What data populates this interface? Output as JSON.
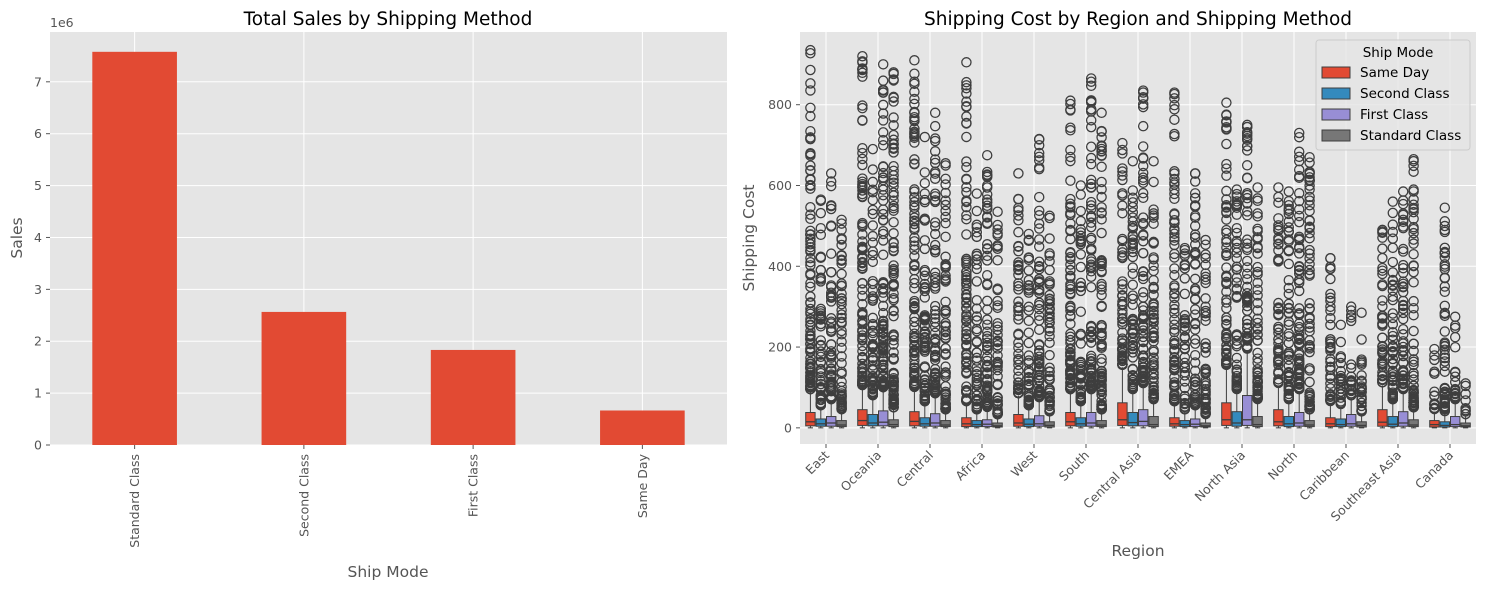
{
  "colors": {
    "panel_bg": "#E5E5E5",
    "grid": "#FFFFFF",
    "bar": "#E24A33",
    "same_day": "#E24A33",
    "second_class": "#348ABD",
    "first_class": "#988ED5",
    "standard_class": "#777777",
    "median": "#3E3E3E"
  },
  "chart_data": [
    {
      "type": "bar",
      "title": "Total Sales by Shipping Method",
      "xlabel": "Ship Mode",
      "ylabel": "Sales",
      "scale_label": "1e6",
      "categories": [
        "Standard Class",
        "Second Class",
        "First Class",
        "Same Day"
      ],
      "values": [
        7578000,
        2565000,
        1832000,
        665000
      ],
      "ylim": [
        0,
        7960000
      ],
      "yticks": [
        0,
        1,
        2,
        3,
        4,
        5,
        6,
        7
      ],
      "ytick_labels": [
        "0",
        "1",
        "2",
        "3",
        "4",
        "5",
        "6",
        "7"
      ],
      "grid": true
    },
    {
      "type": "box",
      "title": "Shipping Cost by Region and Shipping Method",
      "xlabel": "Region",
      "ylabel": "Shipping Cost",
      "categories": [
        "East",
        "Oceania",
        "Central",
        "Africa",
        "West",
        "South",
        "Central Asia",
        "EMEA",
        "North Asia",
        "North",
        "Caribbean",
        "Southeast Asia",
        "Canada"
      ],
      "ylim": [
        -40,
        980
      ],
      "yticks": [
        0,
        200,
        400,
        600,
        800
      ],
      "ytick_labels": [
        "0",
        "200",
        "400",
        "600",
        "800"
      ],
      "grid": true,
      "legend": {
        "title": "Ship Mode",
        "position": "top-right",
        "entries": [
          "Same Day",
          "Second Class",
          "First Class",
          "Standard Class"
        ]
      },
      "series": [
        {
          "name": "Same Day",
          "boxes": [
            {
              "q1": 5,
              "median": 15,
              "q3": 38,
              "max": 90,
              "out_max": 935
            },
            {
              "q1": 6,
              "median": 18,
              "q3": 45,
              "max": 100,
              "out_max": 920
            },
            {
              "q1": 5,
              "median": 16,
              "q3": 40,
              "max": 95,
              "out_max": 910
            },
            {
              "q1": 3,
              "median": 10,
              "q3": 25,
              "max": 60,
              "out_max": 905
            },
            {
              "q1": 4,
              "median": 12,
              "q3": 33,
              "max": 80,
              "out_max": 630
            },
            {
              "q1": 5,
              "median": 15,
              "q3": 38,
              "max": 90,
              "out_max": 810
            },
            {
              "q1": 6,
              "median": 20,
              "q3": 62,
              "max": 150,
              "out_max": 705
            },
            {
              "q1": 4,
              "median": 10,
              "q3": 25,
              "max": 60,
              "out_max": 830
            },
            {
              "q1": 6,
              "median": 20,
              "q3": 62,
              "max": 150,
              "out_max": 805
            },
            {
              "q1": 5,
              "median": 15,
              "q3": 45,
              "max": 105,
              "out_max": 595
            },
            {
              "q1": 3,
              "median": 10,
              "q3": 25,
              "max": 60,
              "out_max": 420
            },
            {
              "q1": 4,
              "median": 14,
              "q3": 45,
              "max": 105,
              "out_max": 490
            },
            {
              "q1": 2,
              "median": 8,
              "q3": 18,
              "max": 40,
              "out_max": 195
            }
          ]
        },
        {
          "name": "Second Class",
          "boxes": [
            {
              "q1": 4,
              "median": 10,
              "q3": 22,
              "max": 50,
              "out_max": 565
            },
            {
              "q1": 5,
              "median": 12,
              "q3": 33,
              "max": 75,
              "out_max": 690
            },
            {
              "q1": 4,
              "median": 10,
              "q3": 25,
              "max": 60,
              "out_max": 720
            },
            {
              "q1": 3,
              "median": 8,
              "q3": 18,
              "max": 40,
              "out_max": 580
            },
            {
              "q1": 3,
              "median": 9,
              "q3": 22,
              "max": 50,
              "out_max": 480
            },
            {
              "q1": 4,
              "median": 10,
              "q3": 25,
              "max": 60,
              "out_max": 600
            },
            {
              "q1": 5,
              "median": 13,
              "q3": 38,
              "max": 90,
              "out_max": 660
            },
            {
              "q1": 3,
              "median": 8,
              "q3": 18,
              "max": 40,
              "out_max": 445
            },
            {
              "q1": 4,
              "median": 12,
              "q3": 40,
              "max": 90,
              "out_max": 590
            },
            {
              "q1": 3,
              "median": 10,
              "q3": 28,
              "max": 65,
              "out_max": 585
            },
            {
              "q1": 3,
              "median": 8,
              "q3": 22,
              "max": 50,
              "out_max": 255
            },
            {
              "q1": 3,
              "median": 9,
              "q3": 28,
              "max": 65,
              "out_max": 560
            },
            {
              "q1": 2,
              "median": 6,
              "q3": 15,
              "max": 35,
              "out_max": 545
            }
          ]
        },
        {
          "name": "First Class",
          "boxes": [
            {
              "q1": 4,
              "median": 12,
              "q3": 28,
              "max": 65,
              "out_max": 630
            },
            {
              "q1": 5,
              "median": 14,
              "q3": 42,
              "max": 95,
              "out_max": 900
            },
            {
              "q1": 4,
              "median": 12,
              "q3": 35,
              "max": 80,
              "out_max": 780
            },
            {
              "q1": 3,
              "median": 9,
              "q3": 20,
              "max": 45,
              "out_max": 675
            },
            {
              "q1": 4,
              "median": 10,
              "q3": 30,
              "max": 70,
              "out_max": 715
            },
            {
              "q1": 4,
              "median": 12,
              "q3": 38,
              "max": 90,
              "out_max": 865
            },
            {
              "q1": 5,
              "median": 16,
              "q3": 45,
              "max": 105,
              "out_max": 835
            },
            {
              "q1": 3,
              "median": 9,
              "q3": 22,
              "max": 50,
              "out_max": 630
            },
            {
              "q1": 6,
              "median": 20,
              "q3": 80,
              "max": 190,
              "out_max": 750
            },
            {
              "q1": 4,
              "median": 12,
              "q3": 38,
              "max": 90,
              "out_max": 730
            },
            {
              "q1": 4,
              "median": 10,
              "q3": 33,
              "max": 75,
              "out_max": 300
            },
            {
              "q1": 4,
              "median": 12,
              "q3": 40,
              "max": 90,
              "out_max": 585
            },
            {
              "q1": 3,
              "median": 8,
              "q3": 28,
              "max": 65,
              "out_max": 275
            }
          ]
        },
        {
          "name": "Standard Class",
          "boxes": [
            {
              "q1": 3,
              "median": 7,
              "q3": 18,
              "max": 40,
              "out_max": 515
            },
            {
              "q1": 3,
              "median": 8,
              "q3": 20,
              "max": 45,
              "out_max": 880
            },
            {
              "q1": 3,
              "median": 7,
              "q3": 18,
              "max": 40,
              "out_max": 655
            },
            {
              "q1": 2,
              "median": 5,
              "q3": 12,
              "max": 28,
              "out_max": 535
            },
            {
              "q1": 2,
              "median": 6,
              "q3": 15,
              "max": 35,
              "out_max": 525
            },
            {
              "q1": 3,
              "median": 7,
              "q3": 18,
              "max": 40,
              "out_max": 780
            },
            {
              "q1": 3,
              "median": 8,
              "q3": 28,
              "max": 65,
              "out_max": 660
            },
            {
              "q1": 2,
              "median": 5,
              "q3": 12,
              "max": 28,
              "out_max": 465
            },
            {
              "q1": 3,
              "median": 8,
              "q3": 28,
              "max": 65,
              "out_max": 595
            },
            {
              "q1": 3,
              "median": 7,
              "q3": 18,
              "max": 40,
              "out_max": 670
            },
            {
              "q1": 2,
              "median": 6,
              "q3": 15,
              "max": 35,
              "out_max": 285
            },
            {
              "q1": 3,
              "median": 7,
              "q3": 20,
              "max": 45,
              "out_max": 665
            },
            {
              "q1": 2,
              "median": 5,
              "q3": 12,
              "max": 28,
              "out_max": 110
            }
          ]
        }
      ]
    }
  ]
}
